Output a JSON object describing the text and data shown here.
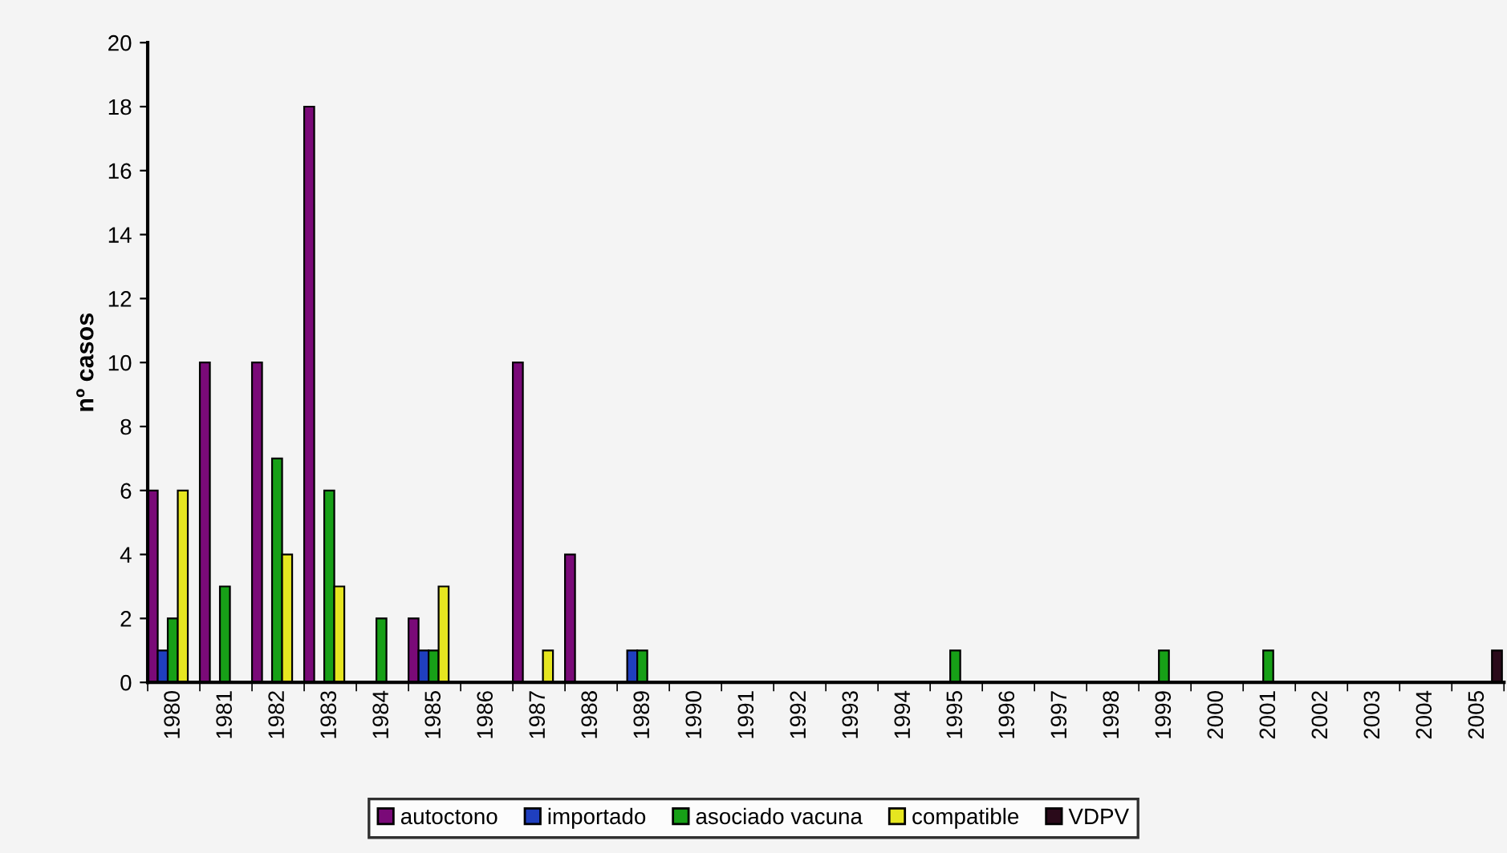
{
  "chart_data": {
    "type": "bar",
    "ylabel": "nº casos",
    "categories": [
      "1980",
      "1981",
      "1982",
      "1983",
      "1984",
      "1985",
      "1986",
      "1987",
      "1988",
      "1989",
      "1990",
      "1991",
      "1992",
      "1993",
      "1994",
      "1995",
      "1996",
      "1997",
      "1998",
      "1999",
      "2000",
      "2001",
      "2002",
      "2003",
      "2004",
      "2005"
    ],
    "series": [
      {
        "name": "autoctono",
        "color": "#7a0a78",
        "values": [
          6,
          10,
          10,
          18,
          0,
          2,
          0,
          10,
          4,
          0,
          0,
          0,
          0,
          0,
          0,
          0,
          0,
          0,
          0,
          0,
          0,
          0,
          0,
          0,
          0,
          0
        ]
      },
      {
        "name": "importado",
        "color": "#1f3fbf",
        "values": [
          1,
          0,
          0,
          0,
          0,
          1,
          0,
          0,
          0,
          1,
          0,
          0,
          0,
          0,
          0,
          0,
          0,
          0,
          0,
          0,
          0,
          0,
          0,
          0,
          0,
          0
        ]
      },
      {
        "name": "asociado vacuna",
        "color": "#17a017",
        "values": [
          2,
          3,
          7,
          6,
          2,
          1,
          0,
          0,
          0,
          1,
          0,
          0,
          0,
          0,
          0,
          1,
          0,
          0,
          0,
          1,
          0,
          1,
          0,
          0,
          0,
          0
        ]
      },
      {
        "name": "compatible",
        "color": "#e6e620",
        "values": [
          6,
          0,
          4,
          3,
          0,
          3,
          0,
          1,
          0,
          0,
          0,
          0,
          0,
          0,
          0,
          0,
          0,
          0,
          0,
          0,
          0,
          0,
          0,
          0,
          0,
          0
        ]
      },
      {
        "name": "VDPV",
        "color": "#2a0a1a",
        "values": [
          0,
          0,
          0,
          0,
          0,
          0,
          0,
          0,
          0,
          0,
          0,
          0,
          0,
          0,
          0,
          0,
          0,
          0,
          0,
          0,
          0,
          0,
          0,
          0,
          0,
          1
        ]
      }
    ],
    "ylim": [
      0,
      20
    ],
    "yticks": [
      0,
      2,
      4,
      6,
      8,
      10,
      12,
      14,
      16,
      18,
      20
    ],
    "grid": false,
    "legend": "bottom"
  }
}
